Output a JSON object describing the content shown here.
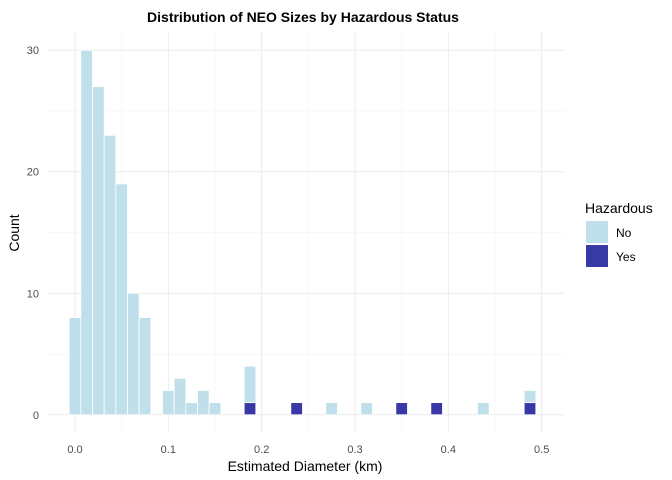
{
  "chart_data": {
    "type": "bar",
    "subtype": "stacked-histogram",
    "title": "Distribution of NEO Sizes by Hazardous Status",
    "xlabel": "Estimated Diameter (km)",
    "ylabel": "Count",
    "xlim": [
      -0.03,
      0.525
    ],
    "ylim": [
      -1.5,
      31.5
    ],
    "x_ticks": [
      0.0,
      0.1,
      0.2,
      0.3,
      0.4,
      0.5
    ],
    "x_tick_labels": [
      "0.0",
      "0.1",
      "0.2",
      "0.3",
      "0.4",
      "0.5"
    ],
    "y_ticks": [
      0,
      10,
      20,
      30
    ],
    "y_tick_labels": [
      "0",
      "10",
      "20",
      "30"
    ],
    "bin_width": 0.0125,
    "bin_centers": [
      0.0,
      0.0125,
      0.025,
      0.0375,
      0.05,
      0.0625,
      0.075,
      0.0875,
      0.1,
      0.1125,
      0.125,
      0.1375,
      0.15,
      0.1625,
      0.1875,
      0.2375,
      0.275,
      0.3125,
      0.35,
      0.3875,
      0.4375,
      0.4875
    ],
    "series": [
      {
        "name": "No",
        "color": "#bfe0ea",
        "values": [
          8,
          30,
          27,
          23,
          19,
          10,
          8,
          0,
          2,
          3,
          1,
          2,
          1,
          0,
          3,
          0,
          1,
          1,
          0,
          0,
          1,
          1
        ]
      },
      {
        "name": "Yes",
        "color": "#3939a6",
        "values": [
          0,
          0,
          0,
          0,
          0,
          0,
          0,
          0,
          0,
          0,
          0,
          0,
          0,
          0,
          1,
          1,
          0,
          0,
          1,
          1,
          0,
          1
        ]
      }
    ],
    "stacking": "yes-bottom",
    "grid": true,
    "legend": {
      "title": "Hazardous",
      "placement": "right",
      "entries": [
        "No",
        "Yes"
      ]
    }
  }
}
